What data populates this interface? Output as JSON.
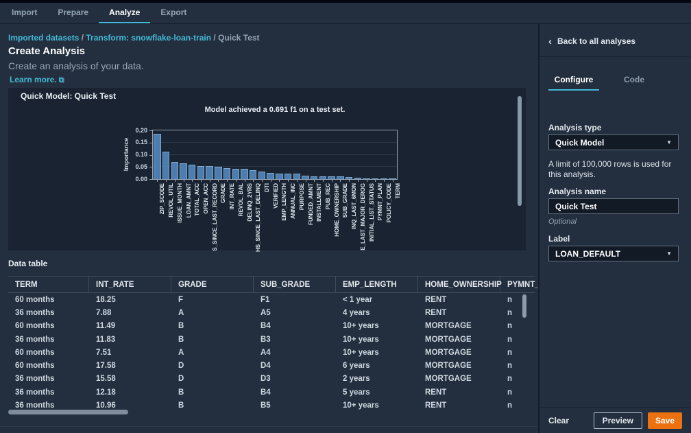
{
  "nav": {
    "tabs": [
      {
        "label": "Import",
        "active": false
      },
      {
        "label": "Prepare",
        "active": false
      },
      {
        "label": "Analyze",
        "active": true
      },
      {
        "label": "Export",
        "active": false
      }
    ]
  },
  "breadcrumb": {
    "link1": "Imported datasets",
    "sep1": " / ",
    "link2": "Transform: snowflake-loan-train",
    "sep2": " / ",
    "current": "Quick Test"
  },
  "page": {
    "title": "Create Analysis",
    "subtitle": "Create an analysis of your data.",
    "learn_more": "Learn more."
  },
  "icons": {
    "external_link": "⧉",
    "back_chevron": "‹",
    "dropdown_caret": "▼"
  },
  "quick_model": {
    "panel_title": "Quick Model: Quick Test"
  },
  "chart_data": {
    "type": "bar",
    "title": "Model achieved a 0.691 f1 on a test set.",
    "xlabel": "",
    "ylabel": "Importance",
    "ylim": [
      0,
      0.2
    ],
    "yticks": [
      "0.00",
      "0.05",
      "0.10",
      "0.15",
      "0.20"
    ],
    "grid": true,
    "bar_color": "#4c7dae",
    "categories": [
      "ZIP_SCODE",
      "REVOL_UTIL",
      "ISSUE_MONTH",
      "LOAN_AMNT",
      "TOTAL_ACC",
      "OPEN_ACC",
      "S_SINCE_LAST_RECORD",
      "GRADE",
      "INT_RATE",
      "REVOL_BAL",
      "DELINQ_2YRS",
      "HS_SINCE_LAST_DELINQ",
      "DTI",
      "VERIFIED",
      "EMP_LENGTH",
      "ANNUAL_INC",
      "PURPOSE",
      "FUNDED_AMNT",
      "INSTALLMENT",
      "PUB_REC",
      "HOME_OWNERSHIP",
      "SUB_GRADE",
      "INQ_LAST_6MON",
      "E_LAST_MAJOR_DEROG",
      "INITIAL_LIST_STATUS",
      "PYMNT_PLAN",
      "POLICY_CODE",
      "TERM"
    ],
    "values": [
      0.185,
      0.112,
      0.07,
      0.066,
      0.059,
      0.054,
      0.053,
      0.05,
      0.046,
      0.043,
      0.042,
      0.036,
      0.031,
      0.024,
      0.023,
      0.023,
      0.022,
      0.013,
      0.011,
      0.01,
      0.01,
      0.01,
      0.009,
      0.006,
      0.004,
      0.003,
      0.001,
      0.001
    ]
  },
  "data_table": {
    "label": "Data table",
    "columns": [
      "TERM",
      "INT_RATE",
      "GRADE",
      "SUB_GRADE",
      "EMP_LENGTH",
      "HOME_OWNERSHIP",
      "PYMNT_"
    ],
    "rows": [
      [
        "60 months",
        "18.25",
        "F",
        "F1",
        "< 1 year",
        "RENT",
        "n"
      ],
      [
        "36 months",
        "7.88",
        "A",
        "A5",
        "4 years",
        "RENT",
        "n"
      ],
      [
        "60 months",
        "11.49",
        "B",
        "B4",
        "10+ years",
        "MORTGAGE",
        "n"
      ],
      [
        "36 months",
        "11.83",
        "B",
        "B3",
        "10+ years",
        "MORTGAGE",
        "n"
      ],
      [
        "60 months",
        "7.51",
        "A",
        "A4",
        "10+ years",
        "MORTGAGE",
        "n"
      ],
      [
        "60 months",
        "17.58",
        "D",
        "D4",
        "6 years",
        "MORTGAGE",
        "n"
      ],
      [
        "36 months",
        "15.58",
        "D",
        "D3",
        "2 years",
        "MORTGAGE",
        "n"
      ],
      [
        "36 months",
        "12.18",
        "B",
        "B4",
        "5 years",
        "RENT",
        "n"
      ],
      [
        "36 months",
        "10.96",
        "B",
        "B5",
        "10+ years",
        "RENT",
        "n"
      ]
    ]
  },
  "sidebar": {
    "back_label": "Back to all analyses",
    "tabs": [
      {
        "label": "Configure",
        "active": true
      },
      {
        "label": "Code",
        "active": false
      }
    ],
    "analysis_type": {
      "label": "Analysis type",
      "value": "Quick Model"
    },
    "limit_note": "A limit of 100,000 rows is used for this analysis.",
    "analysis_name": {
      "label": "Analysis name",
      "value": "Quick Test",
      "hint": "Optional"
    },
    "label_field": {
      "label": "Label",
      "value": "LOAN_DEFAULT"
    },
    "footer": {
      "clear": "Clear",
      "preview": "Preview",
      "save": "Save"
    }
  },
  "colors": {
    "accent": "#44b9d6",
    "save_orange": "#ec7211",
    "page_bg": "#232f3e",
    "panel_bg": "#1a2332"
  }
}
